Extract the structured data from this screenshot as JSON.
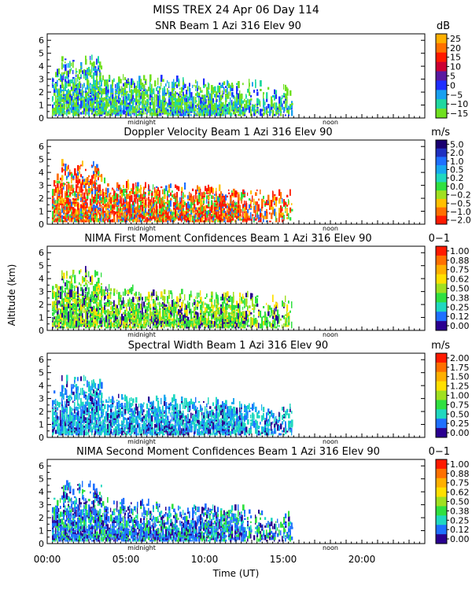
{
  "header": {
    "line1": "MISS TREX   24 Apr 06 Day 114"
  },
  "axes": {
    "ylabel": "Altitude (km)",
    "xlabel": "Time (UT)",
    "y_ticks": [
      "0",
      "1",
      "2",
      "3",
      "4",
      "5",
      "6"
    ],
    "x_ticks": [
      "00:00",
      "05:00",
      "10:00",
      "15:00",
      "20:00"
    ],
    "marker_midnight": "midnight",
    "marker_noon": "noon"
  },
  "chart_data": [
    {
      "type": "heatmap",
      "title": "SNR Beam 1 Azi 316 Elev 90",
      "unit": "dB",
      "xlim": [
        0,
        24
      ],
      "ylim": [
        0,
        6.5
      ],
      "colorbar_labels": [
        "25",
        "20",
        "15",
        "10",
        "5",
        "0",
        "−5",
        "−10",
        "−15"
      ],
      "colorbar_colors": [
        "#ffb000",
        "#ff7000",
        "#ff1a00",
        "#cc0033",
        "#5a1aa0",
        "#1f2fff",
        "#18a0f0",
        "#20d8a0",
        "#70e020"
      ],
      "data_extent": {
        "time_start": 0.3,
        "time_end": 15.5,
        "max_altitude": 4.5
      },
      "dominant_colors": [
        "#70e020",
        "#20d8a0",
        "#18a0f0",
        "#1f2fff"
      ]
    },
    {
      "type": "heatmap",
      "title": "Doppler Velocity Beam 1 Azi 316 Elev 90",
      "unit": "m/s",
      "xlim": [
        0,
        24
      ],
      "ylim": [
        0,
        6.5
      ],
      "colorbar_labels": [
        "5.0",
        "2.0",
        "1.0",
        "0.5",
        "0.2",
        "0.0",
        "−0.2",
        "−0.5",
        "−1.0",
        "−2.0"
      ],
      "colorbar_colors": [
        "#1a0070",
        "#2030c0",
        "#1f70ff",
        "#18a8f0",
        "#20d8c0",
        "#30e040",
        "#a0e020",
        "#ffc000",
        "#ff7000",
        "#ff1a00"
      ],
      "data_extent": {
        "time_start": 0.3,
        "time_end": 15.5,
        "max_altitude": 4.5
      },
      "dominant_colors": [
        "#ff1a00",
        "#ff7000",
        "#ffc000",
        "#30e040",
        "#1f70ff"
      ]
    },
    {
      "type": "heatmap",
      "title": "NIMA First Moment Confidences Beam 1 Azi 316 Elev 90",
      "unit": "0−1",
      "xlim": [
        0,
        24
      ],
      "ylim": [
        0,
        6.5
      ],
      "colorbar_labels": [
        "1.00",
        "0.88",
        "0.75",
        "0.62",
        "0.50",
        "0.38",
        "0.25",
        "0.12",
        "0.00"
      ],
      "colorbar_colors": [
        "#ff1a00",
        "#ff7000",
        "#ffb000",
        "#ffe000",
        "#a0e020",
        "#30e040",
        "#20d8c0",
        "#1f70ff",
        "#2a0090"
      ],
      "data_extent": {
        "time_start": 0.3,
        "time_end": 15.5,
        "max_altitude": 4.5
      },
      "dominant_colors": [
        "#30e040",
        "#a0e020",
        "#ffe000",
        "#2a0090"
      ]
    },
    {
      "type": "heatmap",
      "title": "Spectral Width Beam 1 Azi 316 Elev 90",
      "unit": "m/s",
      "xlim": [
        0,
        24
      ],
      "ylim": [
        0,
        6.5
      ],
      "colorbar_labels": [
        "2.00",
        "1.75",
        "1.50",
        "1.25",
        "1.00",
        "0.75",
        "0.50",
        "0.25",
        "0.00"
      ],
      "colorbar_colors": [
        "#ff1a00",
        "#ff7000",
        "#ffb000",
        "#ffe000",
        "#a0e020",
        "#30e040",
        "#20d8c0",
        "#1f70ff",
        "#2a0090"
      ],
      "data_extent": {
        "time_start": 0.3,
        "time_end": 15.5,
        "max_altitude": 4.5
      },
      "dominant_colors": [
        "#20d8c0",
        "#18a8f0",
        "#1f70ff",
        "#2a0090"
      ]
    },
    {
      "type": "heatmap",
      "title": "NIMA Second Moment Confidences Beam 1 Azi 316 Elev 90",
      "unit": "0−1",
      "xlim": [
        0,
        24
      ],
      "ylim": [
        0,
        6.5
      ],
      "colorbar_labels": [
        "1.00",
        "0.88",
        "0.75",
        "0.62",
        "0.50",
        "0.38",
        "0.25",
        "0.12",
        "0.00"
      ],
      "colorbar_colors": [
        "#ff1a00",
        "#ff7000",
        "#ffb000",
        "#ffe000",
        "#a0e020",
        "#30e040",
        "#20d8c0",
        "#1f70ff",
        "#2a0090"
      ],
      "data_extent": {
        "time_start": 0.3,
        "time_end": 15.5,
        "max_altitude": 4.5
      },
      "dominant_colors": [
        "#1f70ff",
        "#2a0090",
        "#20d8c0",
        "#30e040"
      ]
    }
  ]
}
